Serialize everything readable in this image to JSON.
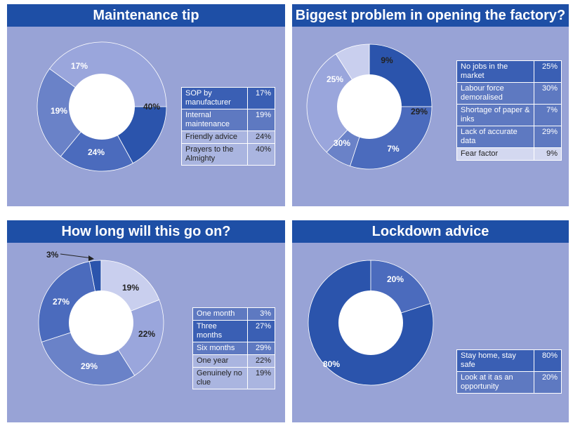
{
  "palette": {
    "banner": "#1e4fa6",
    "panel_bg": "#98a3d6",
    "shades": [
      "#2b54ac",
      "#4b6bbd",
      "#6a82c8",
      "#9aa6dc",
      "#c9cfee"
    ]
  },
  "chart_data": [
    {
      "type": "pie",
      "title": "Maintenance tip",
      "categories": [
        "SOP by manufacturer",
        "Internal maintenance",
        "Friendly advice",
        "Prayers to the Almighty"
      ],
      "values": [
        17,
        19,
        24,
        40
      ],
      "value_labels": [
        "17%",
        "19%",
        "24%",
        "40%"
      ],
      "slice_colors": [
        "#2b54ac",
        "#4b6bbd",
        "#6a82c8",
        "#9aa6dc"
      ]
    },
    {
      "type": "pie",
      "title": "Biggest problem in opening the factory?",
      "categories": [
        "No jobs in the market",
        "Labour force demoralised",
        "Shortage of paper & inks",
        "Lack of accurate data",
        "Fear factor"
      ],
      "values": [
        25,
        30,
        7,
        29,
        9
      ],
      "value_labels": [
        "25%",
        "30%",
        "7%",
        "29%",
        "9%"
      ],
      "slice_colors": [
        "#2b54ac",
        "#4b6bbd",
        "#6a82c8",
        "#9aa6dc",
        "#c9cfee"
      ]
    },
    {
      "type": "pie",
      "title": "How long will this go on?",
      "categories": [
        "One month",
        "Three months",
        "Six months",
        "One year",
        "Genuinely no clue"
      ],
      "values": [
        3,
        27,
        29,
        22,
        19
      ],
      "value_labels": [
        "3%",
        "27%",
        "29%",
        "22%",
        "19%"
      ],
      "slice_colors": [
        "#2b54ac",
        "#4b6bbd",
        "#6a82c8",
        "#9aa6dc",
        "#c9cfee"
      ]
    },
    {
      "type": "pie",
      "title": "Lockdown advice",
      "categories": [
        "Stay home, stay safe",
        "Look at it as an opportunity"
      ],
      "values": [
        80,
        20
      ],
      "value_labels": [
        "80%",
        "20%"
      ],
      "slice_colors": [
        "#2b54ac",
        "#4b6bbd"
      ]
    }
  ],
  "legends": [
    {
      "rows": [
        {
          "label": "SOP by manufacturer",
          "value": "17%"
        },
        {
          "label": "Internal maintenance",
          "value": "19%"
        },
        {
          "label": "Friendly advice",
          "value": "24%"
        },
        {
          "label": "Prayers to the Almighty",
          "value": "40%"
        }
      ]
    },
    {
      "rows": [
        {
          "label": "No jobs in the market",
          "value": "25%"
        },
        {
          "label": "Labour force demoralised",
          "value": "30%"
        },
        {
          "label": "Shortage of paper & inks",
          "value": "7%"
        },
        {
          "label": "Lack of accurate data",
          "value": "29%"
        },
        {
          "label": "Fear factor",
          "value": "9%"
        }
      ]
    },
    {
      "rows": [
        {
          "label": "One month",
          "value": "3%"
        },
        {
          "label": "Three months",
          "value": "27%"
        },
        {
          "label": "Six months",
          "value": "29%"
        },
        {
          "label": "One year",
          "value": "22%"
        },
        {
          "label": "Genuinely no clue",
          "value": "19%"
        }
      ]
    },
    {
      "rows": [
        {
          "label": "Stay home, stay safe",
          "value": "80%"
        },
        {
          "label": "Look at it as an opportunity",
          "value": "20%"
        }
      ]
    }
  ]
}
